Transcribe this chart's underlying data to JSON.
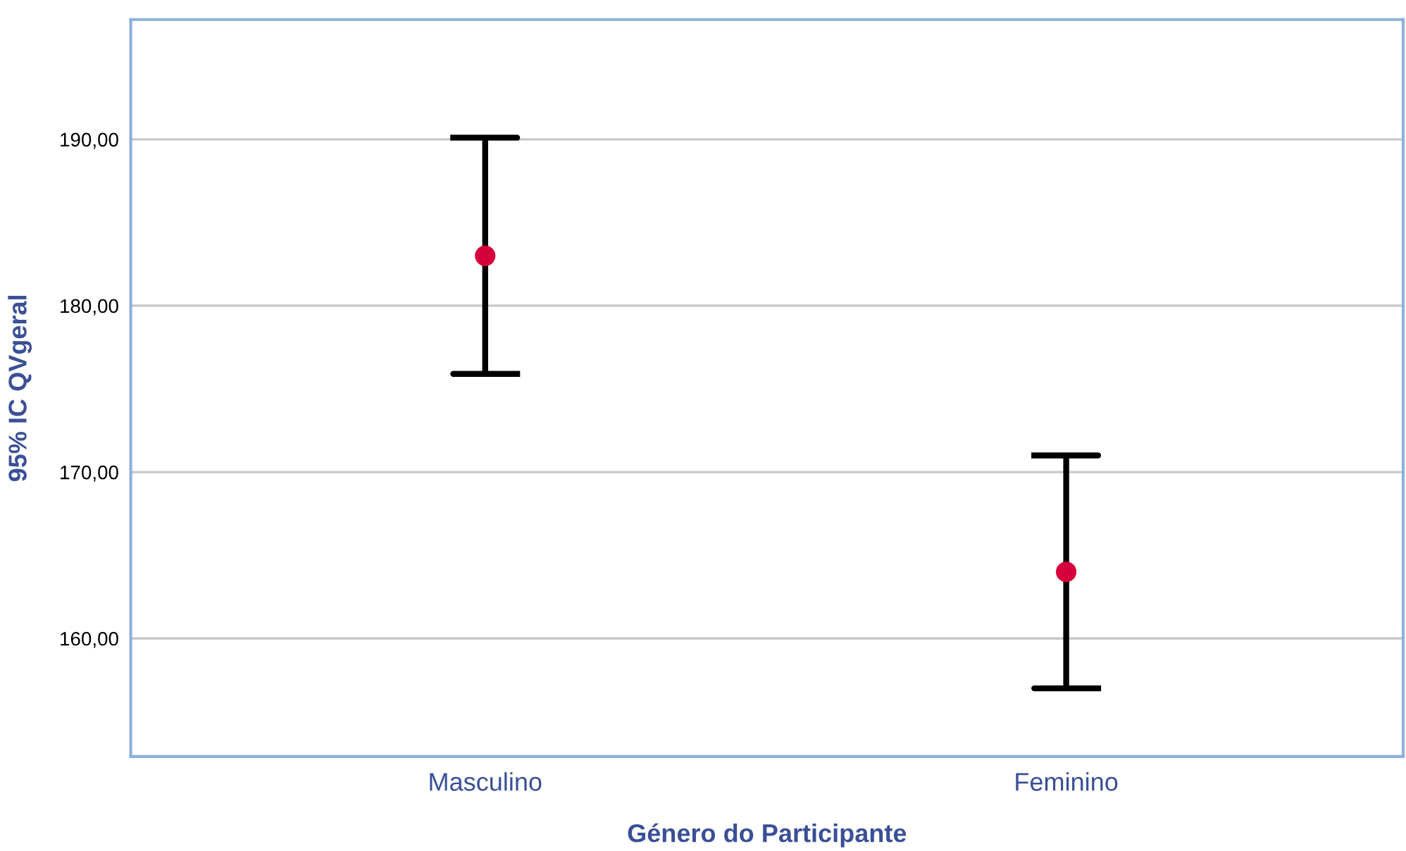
{
  "chart_data": {
    "type": "scatter",
    "xlabel": "Género do Participante",
    "ylabel": "95% IC QVgeral",
    "categories": [
      "Masculino",
      "Feminino"
    ],
    "color": "#d6003c",
    "values": [
      183.0,
      164.0
    ],
    "errors": [
      7.1,
      7.0
    ],
    "marker": "circle",
    "ylim": [
      152.9,
      197.2
    ],
    "yticks": [
      {
        "value": 160,
        "label": "160,00"
      },
      {
        "value": 170,
        "label": "170,00"
      },
      {
        "value": 180,
        "label": "180,00"
      },
      {
        "value": 190,
        "label": "190,00"
      }
    ],
    "grid": "y"
  }
}
